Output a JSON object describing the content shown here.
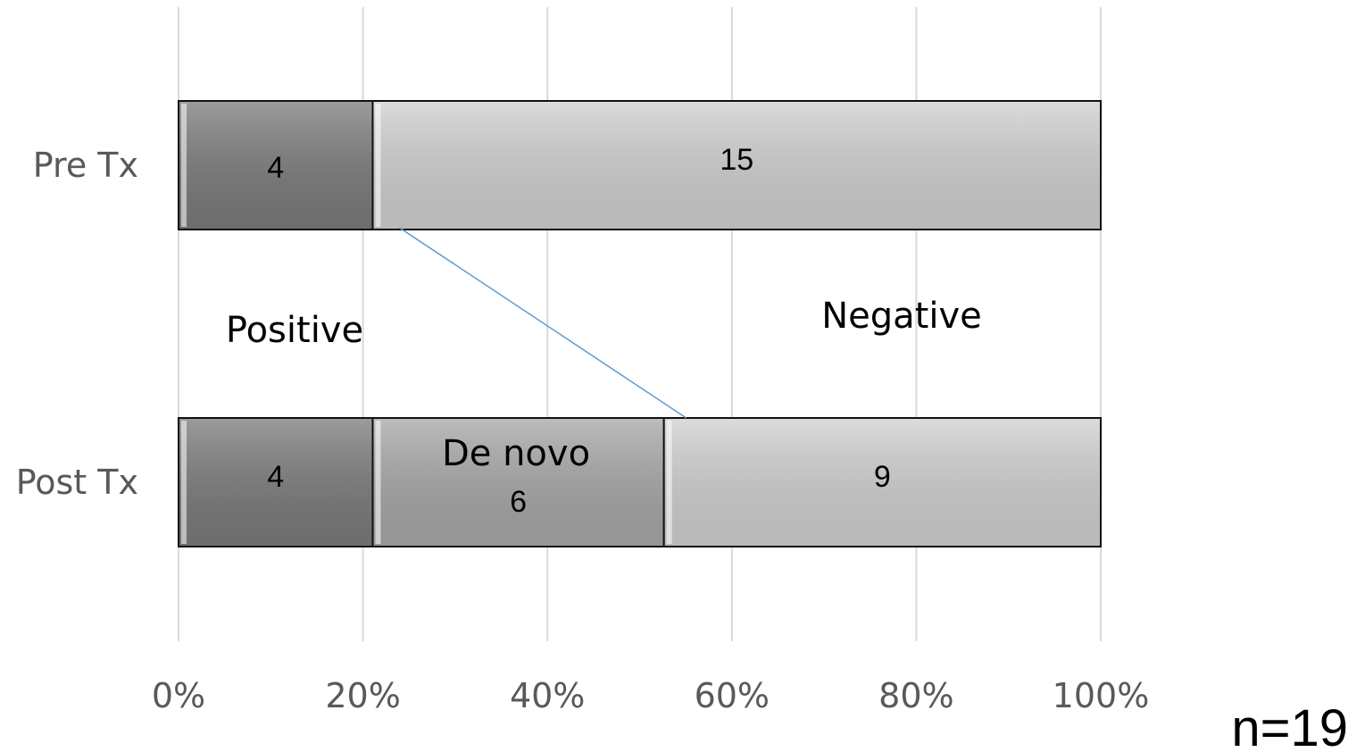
{
  "chart_data": {
    "type": "bar",
    "orientation": "horizontal",
    "stacked": "percent",
    "categories": [
      "Pre Tx",
      "Post Tx"
    ],
    "series": [
      {
        "values": [
          4,
          4
        ],
        "color": "#7a7a7a"
      },
      {
        "values": [
          0,
          6
        ],
        "color": "#a6a6a6"
      },
      {
        "values": [
          15,
          9
        ],
        "color": "#cfcfcf"
      }
    ],
    "data_labels": [
      [
        "4",
        "",
        "15"
      ],
      [
        "4",
        "6",
        "9"
      ]
    ],
    "xlim": [
      0,
      100
    ],
    "xticks": [
      0,
      20,
      40,
      60,
      80,
      100
    ],
    "xtick_labels": [
      "0%",
      "20%",
      "40%",
      "60%",
      "80%",
      "100%"
    ],
    "grid": "vertical",
    "annotations": {
      "positive": "Positive",
      "negative": "Negative",
      "de_novo": "De novo"
    },
    "connector_line": {
      "color": "#5b9bd5"
    },
    "n_label": "n=19"
  }
}
